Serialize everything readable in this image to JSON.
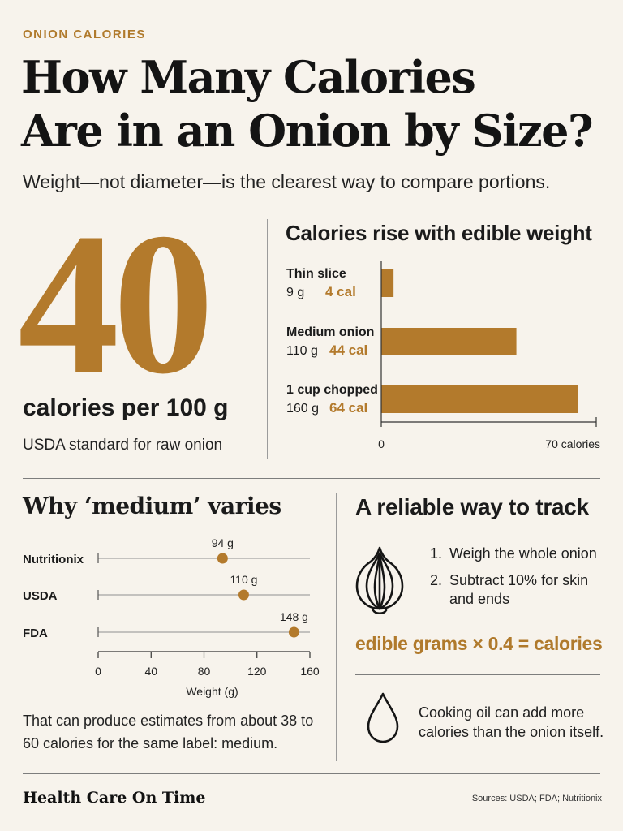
{
  "header": {
    "eyebrow": "ONION CALORIES",
    "title_line1": "How Many Calories",
    "title_line2": "Are in an Onion by Size?",
    "subtitle": "Weight—not diameter—is the clearest way to compare portions."
  },
  "hero": {
    "big_number": "40",
    "per_100g": "calories per 100 g",
    "note": "USDA standard for raw onion"
  },
  "colors": {
    "accent": "#b37a2c",
    "background": "#f7f3ec",
    "text": "#1b1b1b"
  },
  "chart_data": [
    {
      "type": "bar",
      "orientation": "horizontal",
      "title": "Calories rise with edible weight",
      "categories": [
        "Thin slice",
        "Medium onion",
        "1 cup chopped"
      ],
      "weights": [
        "9 g",
        "110 g",
        "160 g"
      ],
      "value_labels": [
        "4 cal",
        "44 cal",
        "64 cal"
      ],
      "values": [
        4,
        44,
        64
      ],
      "xlim": [
        0,
        70
      ],
      "x_tick_labels": [
        "0",
        "70 calories"
      ],
      "grid": false,
      "color": "#b37a2c"
    },
    {
      "type": "scatter",
      "title": "Why ‘medium’ varies",
      "categories": [
        "Nutritionix",
        "USDA",
        "FDA"
      ],
      "values": [
        94,
        110,
        148
      ],
      "value_labels": [
        "94 g",
        "110 g",
        "148 g"
      ],
      "xlim": [
        0,
        160
      ],
      "x_ticks": [
        0,
        40,
        80,
        120,
        160
      ],
      "xlabel": "Weight (g)",
      "grid": false,
      "color": "#b37a2c"
    }
  ],
  "variance_note": "That can produce estimates from about 38 to 60 calories for the same label: medium.",
  "tracking": {
    "title": "A reliable way to track",
    "steps": [
      {
        "num": "1.",
        "text": "Weigh the whole onion"
      },
      {
        "num": "2.",
        "text": "Subtract 10% for skin and ends"
      }
    ],
    "formula": "edible grams × 0.4 = calories",
    "oil_note": "Cooking oil can add more calories than the onion itself.",
    "icons": [
      "onion-icon",
      "oil-drop-icon"
    ]
  },
  "footer": {
    "brand": "Health Care On Time",
    "sources": "Sources: USDA; FDA; Nutritionix"
  }
}
